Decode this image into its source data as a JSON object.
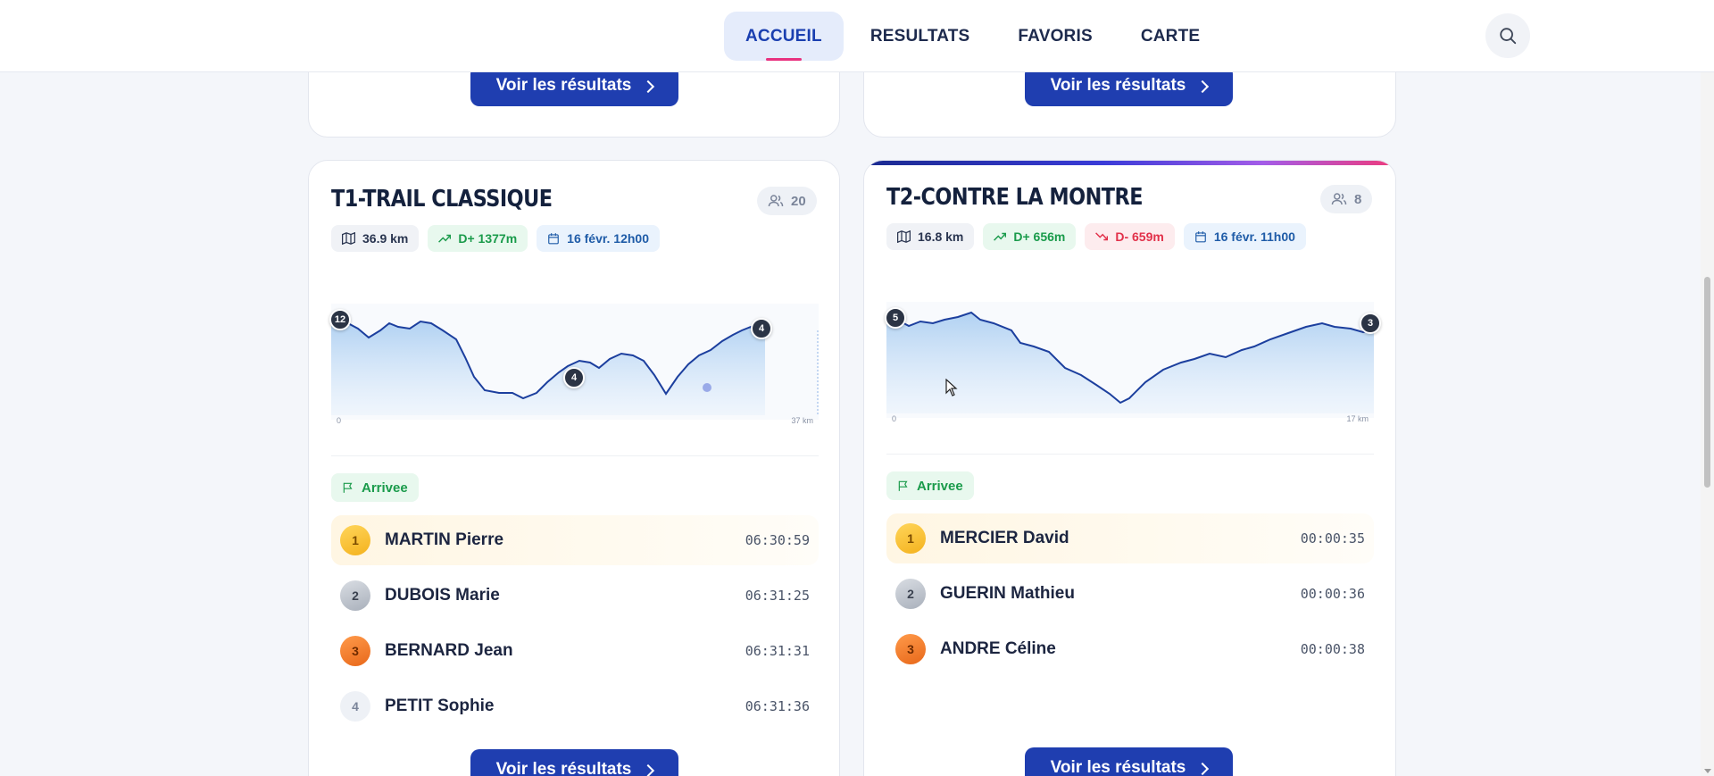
{
  "nav": {
    "items": [
      {
        "label": "ACCUEIL",
        "active": true
      },
      {
        "label": "RESULTATS",
        "active": false
      },
      {
        "label": "FAVORIS",
        "active": false
      },
      {
        "label": "CARTE",
        "active": false
      }
    ],
    "search_icon": "search-icon"
  },
  "top_cards": {
    "left_button": "Voir les résultats",
    "right_button": "Voir les résultats"
  },
  "races": [
    {
      "title": "T1-TRAIL CLASSIQUE",
      "participants": "20",
      "distance": "36.9 km",
      "elevation_gain": "D+ 1377m",
      "date": "16 févr. 12h00",
      "profile": {
        "axis_start": "0",
        "axis_end": "37 km",
        "markers": [
          "12",
          "4",
          "4"
        ]
      },
      "status": "Arrivee",
      "results": [
        {
          "rank": "1",
          "name": "MARTIN Pierre",
          "time": "06:30:59"
        },
        {
          "rank": "2",
          "name": "DUBOIS Marie",
          "time": "06:31:25"
        },
        {
          "rank": "3",
          "name": "BERNARD Jean",
          "time": "06:31:31"
        },
        {
          "rank": "4",
          "name": "PETIT Sophie",
          "time": "06:31:36"
        }
      ],
      "button": "Voir les résultats"
    },
    {
      "title": "T2-CONTRE LA MONTRE",
      "participants": "8",
      "distance": "16.8 km",
      "elevation_gain": "D+ 656m",
      "elevation_loss": "D- 659m",
      "date": "16 févr. 11h00",
      "profile": {
        "axis_start": "0",
        "axis_end": "17 km",
        "markers": [
          "5",
          "3"
        ]
      },
      "status": "Arrivee",
      "results": [
        {
          "rank": "1",
          "name": "MERCIER David",
          "time": "00:00:35"
        },
        {
          "rank": "2",
          "name": "GUERIN Mathieu",
          "time": "00:00:36"
        },
        {
          "rank": "3",
          "name": "ANDRE Céline",
          "time": "00:00:38"
        }
      ],
      "button": "Voir les résultats"
    }
  ],
  "colors": {
    "primary": "#1f3eb0",
    "nav_active_bg": "#e5ecfb",
    "nav_indicator": "#e8327f",
    "gain_green": "#1a9b4b",
    "loss_red": "#e2314a",
    "profile_line": "#1c3f9e"
  }
}
